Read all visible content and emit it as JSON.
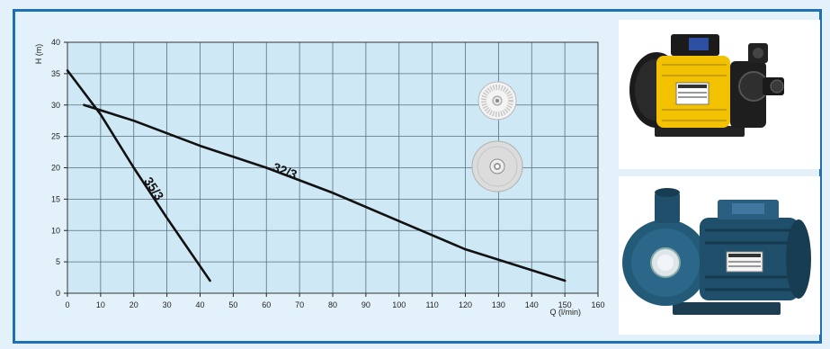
{
  "chart_data": {
    "type": "line",
    "xlabel": "Q (l/min)",
    "ylabel": "H (m)",
    "xlim": [
      0,
      160
    ],
    "ylim": [
      0,
      40
    ],
    "xticks": [
      0,
      10,
      20,
      30,
      40,
      50,
      60,
      70,
      80,
      90,
      100,
      110,
      120,
      130,
      140,
      150,
      160
    ],
    "yticks": [
      0,
      5,
      10,
      15,
      20,
      25,
      30,
      35,
      40
    ],
    "grid": true,
    "series": [
      {
        "name": "35/3",
        "x": [
          0,
          10,
          20,
          30,
          43
        ],
        "y": [
          35.5,
          28.5,
          20,
          12,
          2
        ]
      },
      {
        "name": "32/3",
        "x": [
          5,
          20,
          40,
          60,
          80,
          100,
          120,
          150
        ],
        "y": [
          30,
          27.5,
          23.5,
          20,
          16,
          11.5,
          7,
          2
        ]
      }
    ]
  },
  "colors": {
    "panel_border": "#1f6fb6",
    "panel_bg": "#e3f1fa",
    "plot_bg": "#cfe8f5",
    "grid": "#5a6f80",
    "line": "#111111",
    "pump_top_body": "#f2c200",
    "pump_bottom_body": "#1f4f6a"
  },
  "images": {
    "impeller_small": "radial-impeller-icon",
    "impeller_large": "disc-impeller-icon",
    "pump_top": "peripheral-pump-photo",
    "pump_bottom": "centrifugal-pump-photo"
  }
}
